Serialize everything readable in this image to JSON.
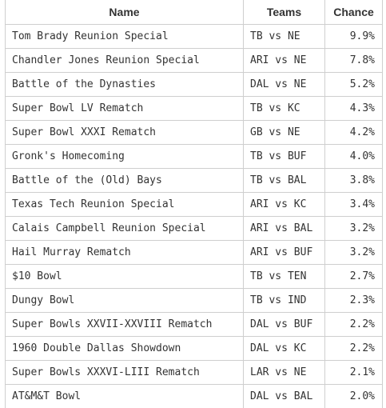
{
  "headers": {
    "name": "Name",
    "teams": "Teams",
    "chance": "Chance"
  },
  "rows": [
    {
      "name": "Tom Brady Reunion Special",
      "teams": "TB vs NE",
      "chance": "9.9%"
    },
    {
      "name": "Chandler Jones Reunion Special",
      "teams": "ARI vs NE",
      "chance": "7.8%"
    },
    {
      "name": "Battle of the Dynasties",
      "teams": "DAL vs NE",
      "chance": "5.2%"
    },
    {
      "name": "Super Bowl LV Rematch",
      "teams": "TB vs KC",
      "chance": "4.3%"
    },
    {
      "name": "Super Bowl XXXI Rematch",
      "teams": "GB vs NE",
      "chance": "4.2%"
    },
    {
      "name": "Gronk's Homecoming",
      "teams": "TB vs BUF",
      "chance": "4.0%"
    },
    {
      "name": "Battle of the (Old) Bays",
      "teams": "TB vs BAL",
      "chance": "3.8%"
    },
    {
      "name": "Texas Tech Reunion Special",
      "teams": "ARI vs KC",
      "chance": "3.4%"
    },
    {
      "name": "Calais Campbell Reunion Special",
      "teams": "ARI vs BAL",
      "chance": "3.2%"
    },
    {
      "name": "Hail Murray Rematch",
      "teams": "ARI vs BUF",
      "chance": "3.2%"
    },
    {
      "name": "$10 Bowl",
      "teams": "TB vs TEN",
      "chance": "2.7%"
    },
    {
      "name": "Dungy Bowl",
      "teams": "TB vs IND",
      "chance": "2.3%"
    },
    {
      "name": "Super Bowls XXVII-XXVIII Rematch",
      "teams": "DAL vs BUF",
      "chance": "2.2%"
    },
    {
      "name": "1960 Double Dallas Showdown",
      "teams": "DAL vs KC",
      "chance": "2.2%"
    },
    {
      "name": "Super Bowls XXXVI-LIII Rematch",
      "teams": "LAR vs NE",
      "chance": "2.1%"
    },
    {
      "name": "AT&M&T Bowl",
      "teams": "DAL vs BAL",
      "chance": "2.0%"
    }
  ]
}
